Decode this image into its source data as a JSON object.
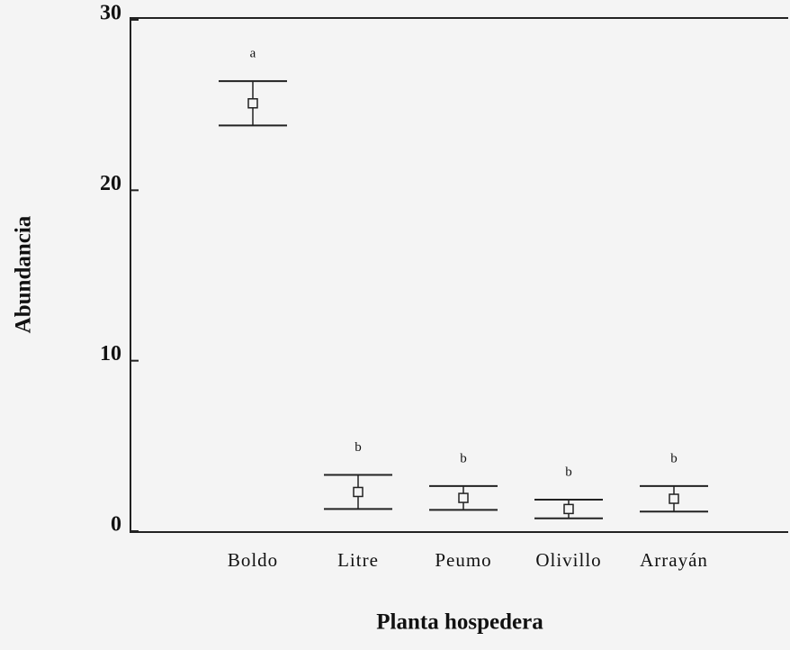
{
  "chart_data": {
    "type": "errorbar",
    "x_label": "Planta hospedera",
    "y_label": "Abundancia",
    "categories": [
      "Boldo",
      "Litre",
      "Peumo",
      "Olivillo",
      "Arrayán"
    ],
    "values": [
      25.1,
      2.3,
      1.95,
      1.3,
      1.9
    ],
    "errors": [
      1.3,
      1.0,
      0.7,
      0.55,
      0.75
    ],
    "annotations": [
      "a",
      "b",
      "b",
      "b",
      "b"
    ],
    "ylim": [
      0,
      30
    ],
    "yticks": [
      0,
      10,
      20,
      30
    ],
    "color": "#222222"
  }
}
